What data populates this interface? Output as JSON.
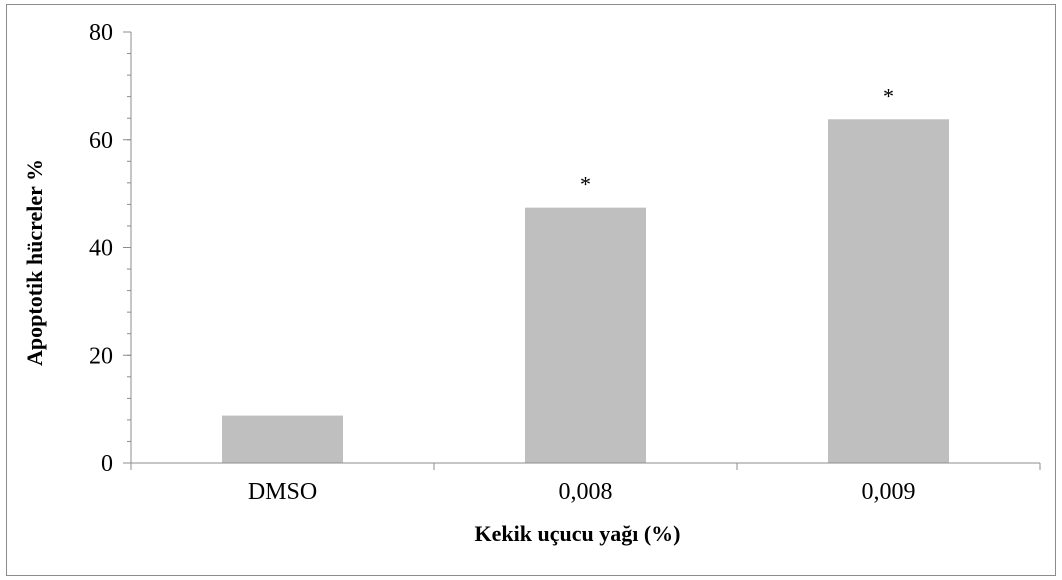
{
  "chart_data": {
    "type": "bar",
    "categories": [
      "DMSO",
      "0,008",
      "0,009"
    ],
    "values": [
      8.8,
      47.4,
      63.8
    ],
    "annotations": [
      "",
      "*",
      "*"
    ],
    "title": "",
    "xlabel": "Kekik uçucu yağı (%)",
    "ylabel": "Apoptotik hücreler %",
    "ylim": [
      0,
      80
    ],
    "yticks": [
      0,
      20,
      40,
      60,
      80
    ],
    "ytick_labels": [
      "0",
      "20",
      "40",
      "60",
      "80"
    ],
    "minor_tick_step": 4,
    "grid": false,
    "legend": "none",
    "bar_color": "#bfbfbf"
  }
}
